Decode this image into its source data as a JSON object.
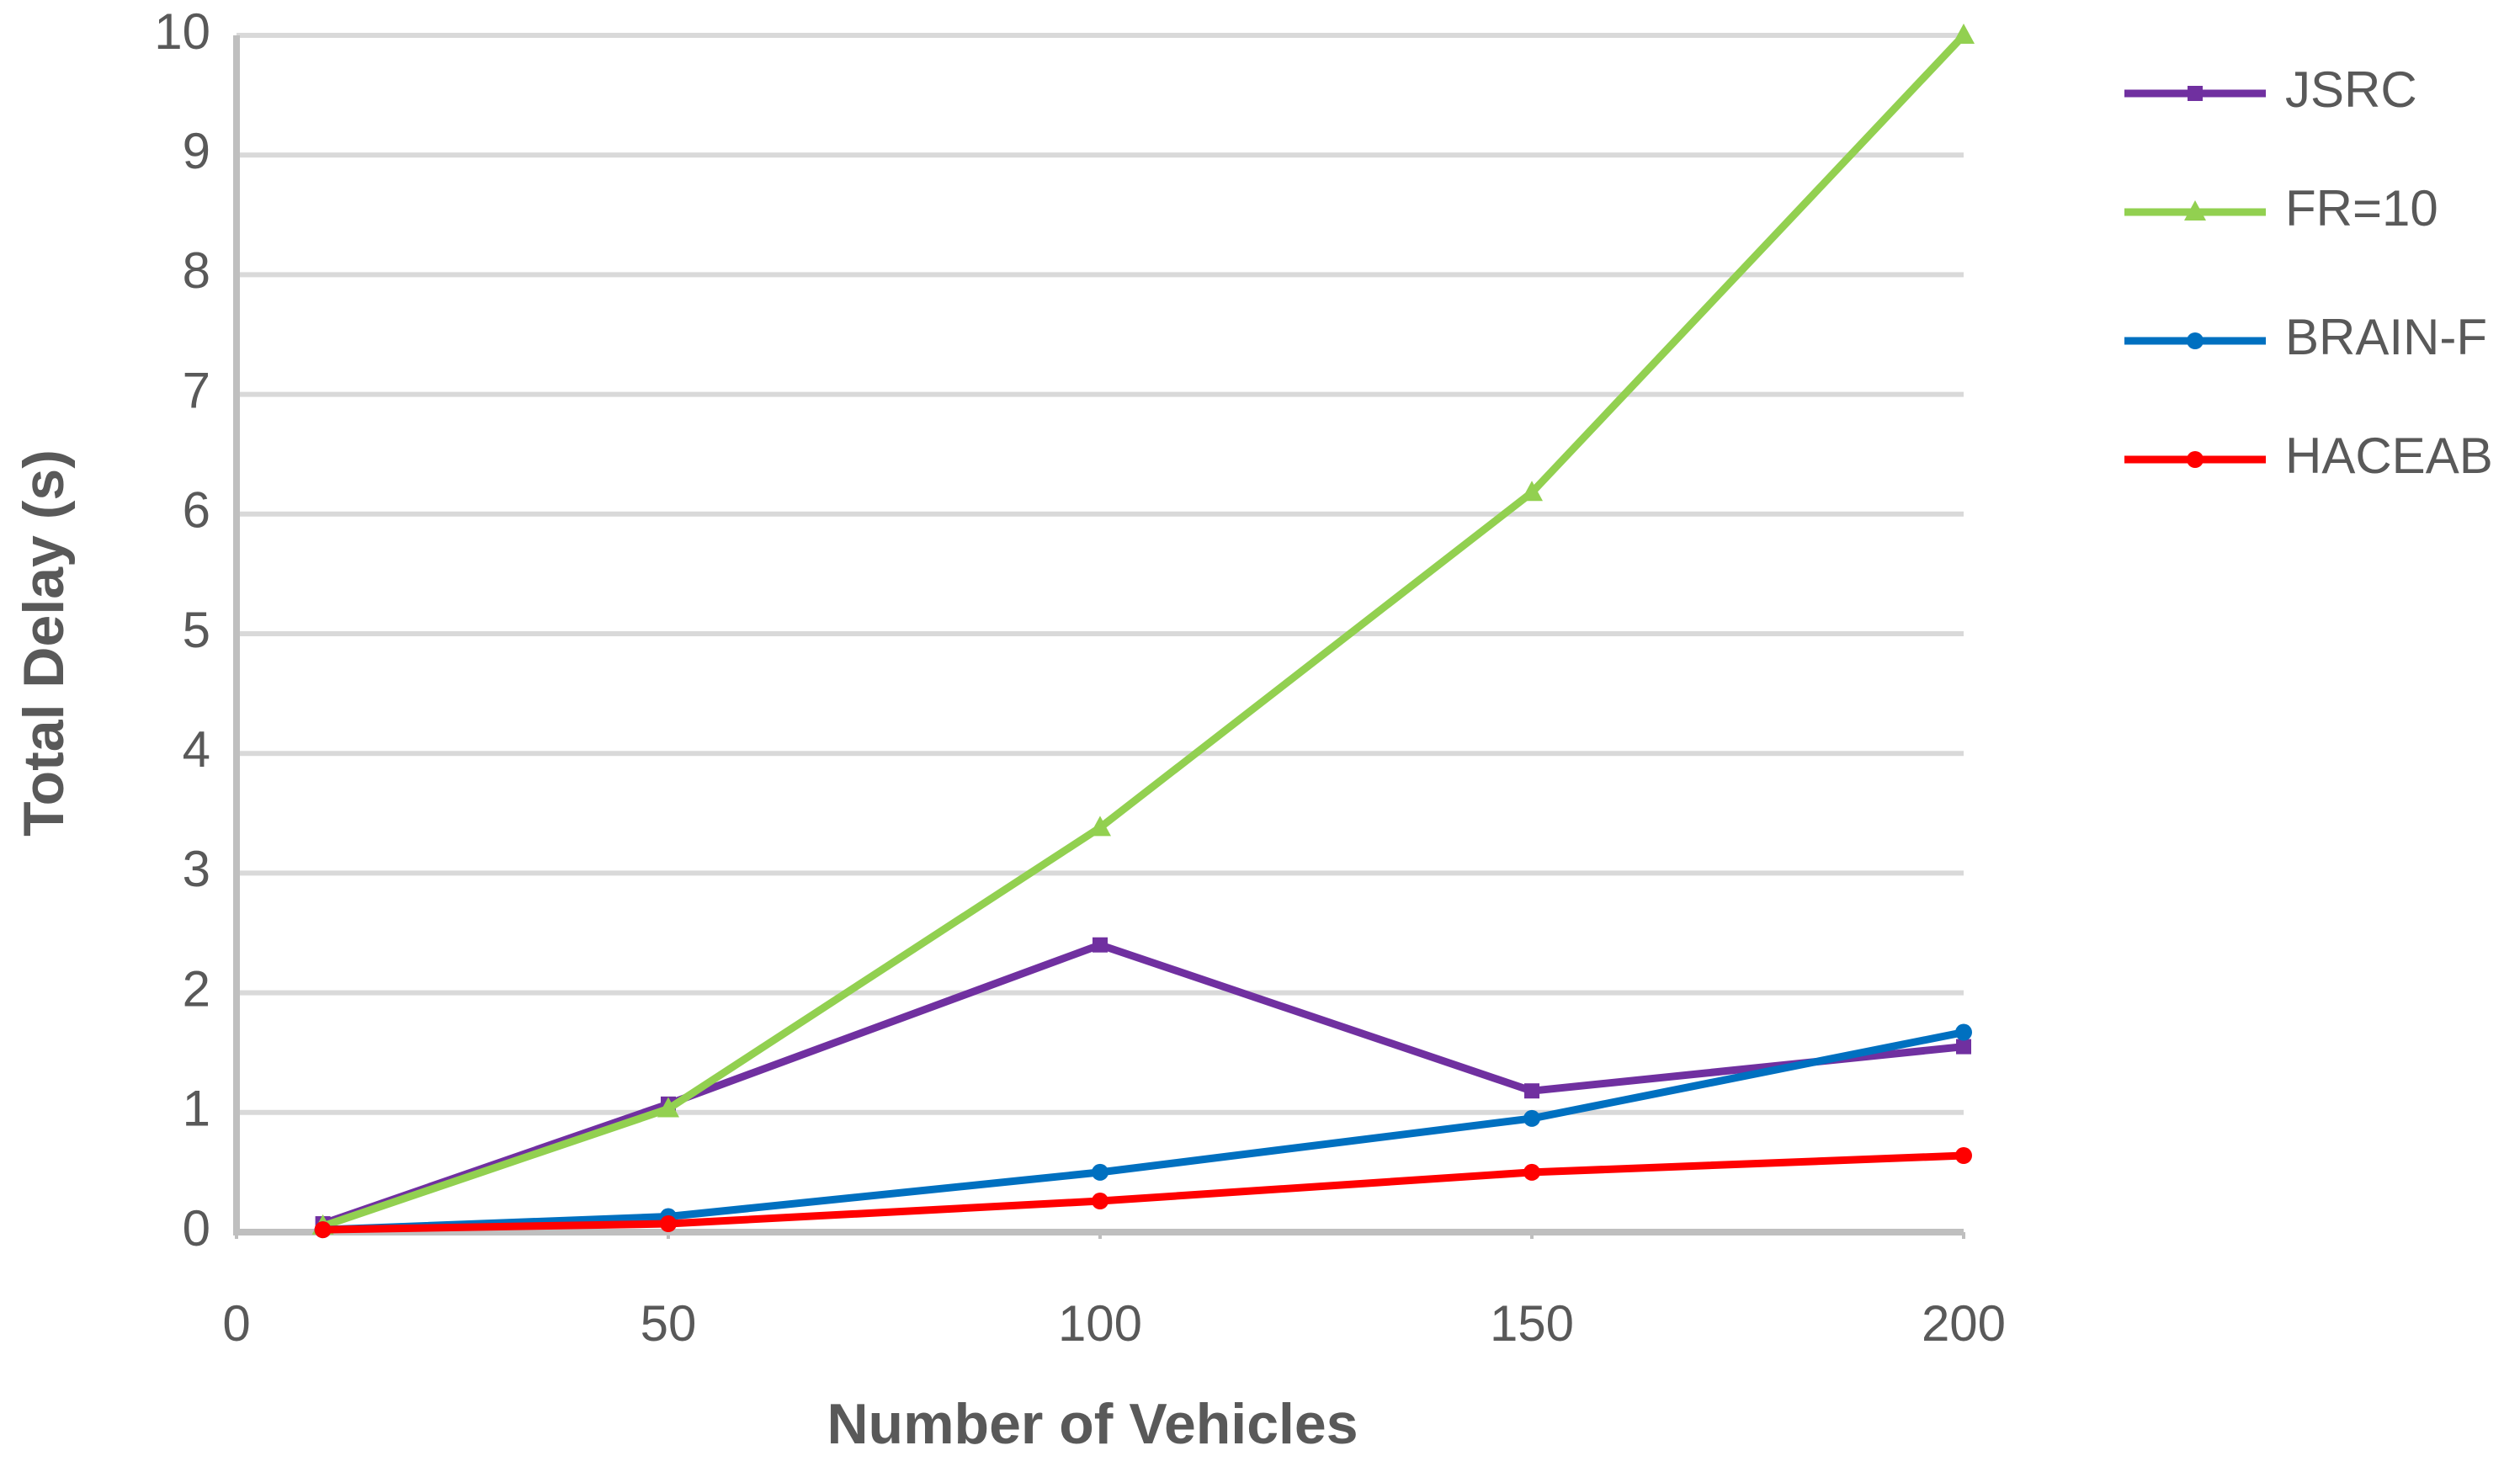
{
  "chart_data": {
    "type": "line",
    "x_label": "Number of Vehicles",
    "y_label": "Total Delay (s)",
    "x": [
      10,
      50,
      100,
      150,
      200
    ],
    "series": [
      {
        "name": "JSRC",
        "color": "#7030a0",
        "marker": "square",
        "values": [
          0.07,
          1.07,
          2.4,
          1.18,
          1.55
        ]
      },
      {
        "name": "FR=10",
        "color": "#92d050",
        "marker": "triangle",
        "values": [
          0.05,
          1.03,
          3.38,
          6.18,
          10.0
        ]
      },
      {
        "name": "BRAIN-F",
        "color": "#0070c0",
        "marker": "circle",
        "values": [
          0.02,
          0.13,
          0.5,
          0.95,
          1.67
        ]
      },
      {
        "name": "HACEAB",
        "color": "#ff0000",
        "marker": "circle",
        "values": [
          0.02,
          0.07,
          0.26,
          0.5,
          0.64
        ]
      }
    ],
    "xlim": [
      0,
      200
    ],
    "xticks": [
      0,
      50,
      100,
      150,
      200
    ],
    "ylim": [
      0,
      10
    ],
    "yticks": [
      0,
      1,
      2,
      3,
      4,
      5,
      6,
      7,
      8,
      9,
      10
    ],
    "grid": true,
    "legend": "right"
  }
}
